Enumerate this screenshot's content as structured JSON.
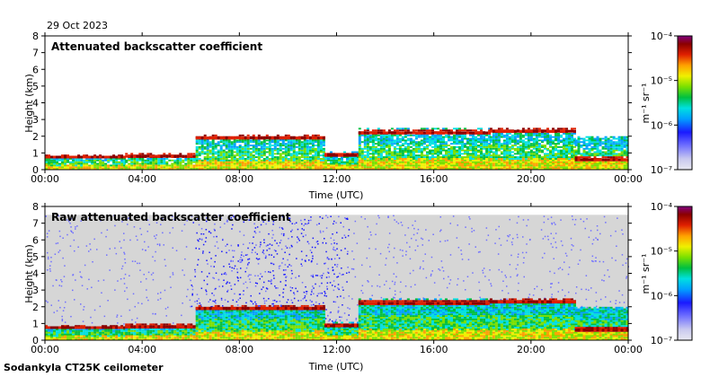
{
  "date": "29 Oct 2023",
  "footer": "Sodankyla CT25K ceilometer",
  "colors": {
    "scale": [
      "#e8e8f0",
      "#c9c9ef",
      "#7070ff",
      "#1a1aff",
      "#00a0ff",
      "#00e0e0",
      "#00c040",
      "#7ae000",
      "#f0f000",
      "#ffa000",
      "#e02000",
      "#8b0000",
      "#800080"
    ],
    "noise_bg": "#d6d6d6"
  },
  "chart_data": [
    {
      "type": "heatmap",
      "title": "Attenuated backscatter coefficient",
      "xlabel": "Time (UTC)",
      "ylabel": "Height (km)",
      "xlim": [
        "00:00",
        "24:00"
      ],
      "ylim": [
        0,
        8
      ],
      "x_ticks": [
        "00:00",
        "04:00",
        "08:00",
        "12:00",
        "16:00",
        "20:00",
        "00:00"
      ],
      "y_ticks": [
        "0",
        "1",
        "2",
        "3",
        "4",
        "5",
        "6",
        "7",
        "8"
      ],
      "colorbar": {
        "unit": "m⁻¹ sr⁻¹",
        "scale": "log",
        "ticks": [
          "10⁻⁷",
          "10⁻⁶",
          "10⁻⁵",
          "10⁻⁴"
        ],
        "range": [
          1e-07,
          0.0001
        ]
      },
      "layers": [
        {
          "start_h": 0.0,
          "end_h": 3.3,
          "top_km": 0.8,
          "bottom_km": 0.0,
          "peak_km": 0.75
        },
        {
          "start_h": 3.3,
          "end_h": 6.2,
          "top_km": 0.9,
          "bottom_km": 0.0,
          "peak_km": 0.8
        },
        {
          "start_h": 6.2,
          "end_h": 11.5,
          "top_km": 2.0,
          "bottom_km": 0.0,
          "peak_km": 1.9
        },
        {
          "start_h": 11.5,
          "end_h": 12.9,
          "top_km": 1.0,
          "bottom_km": 0.0,
          "peak_km": 0.85
        },
        {
          "start_h": 12.9,
          "end_h": 18.3,
          "top_km": 2.4,
          "bottom_km": 0.0,
          "peak_km": 2.2
        },
        {
          "start_h": 18.3,
          "end_h": 21.8,
          "top_km": 2.4,
          "bottom_km": 0.0,
          "peak_km": 2.3
        },
        {
          "start_h": 21.8,
          "end_h": 24.0,
          "top_km": 1.9,
          "bottom_km": 0.0,
          "peak_km": 0.6
        }
      ],
      "noise": "low"
    },
    {
      "type": "heatmap",
      "title": "Raw attenuated backscatter coefficient",
      "xlabel": "Time (UTC)",
      "ylabel": "Height (km)",
      "xlim": [
        "00:00",
        "24:00"
      ],
      "ylim": [
        0,
        8
      ],
      "x_ticks": [
        "00:00",
        "04:00",
        "08:00",
        "12:00",
        "16:00",
        "20:00",
        "00:00"
      ],
      "y_ticks": [
        "0",
        "1",
        "2",
        "3",
        "4",
        "5",
        "6",
        "7",
        "8"
      ],
      "colorbar": {
        "unit": "m⁻¹ sr⁻¹",
        "scale": "log",
        "ticks": [
          "10⁻⁷",
          "10⁻⁶",
          "10⁻⁵",
          "10⁻⁴"
        ],
        "range": [
          1e-07,
          0.0001
        ]
      },
      "layers": [
        {
          "start_h": 0.0,
          "end_h": 3.3,
          "top_km": 0.8,
          "bottom_km": 0.0,
          "peak_km": 0.75
        },
        {
          "start_h": 3.3,
          "end_h": 6.2,
          "top_km": 0.9,
          "bottom_km": 0.0,
          "peak_km": 0.8
        },
        {
          "start_h": 6.2,
          "end_h": 11.5,
          "top_km": 2.0,
          "bottom_km": 0.0,
          "peak_km": 1.9
        },
        {
          "start_h": 11.5,
          "end_h": 12.9,
          "top_km": 1.0,
          "bottom_km": 0.0,
          "peak_km": 0.85
        },
        {
          "start_h": 12.9,
          "end_h": 18.3,
          "top_km": 2.4,
          "bottom_km": 0.0,
          "peak_km": 2.2
        },
        {
          "start_h": 18.3,
          "end_h": 21.8,
          "top_km": 2.4,
          "bottom_km": 0.0,
          "peak_km": 2.3
        },
        {
          "start_h": 21.8,
          "end_h": 24.0,
          "top_km": 1.9,
          "bottom_km": 0.0,
          "peak_km": 0.6
        }
      ],
      "noise": "high",
      "noise_top_km": 7.5,
      "dense_noise_window": [
        "06:00",
        "12:30"
      ]
    }
  ]
}
